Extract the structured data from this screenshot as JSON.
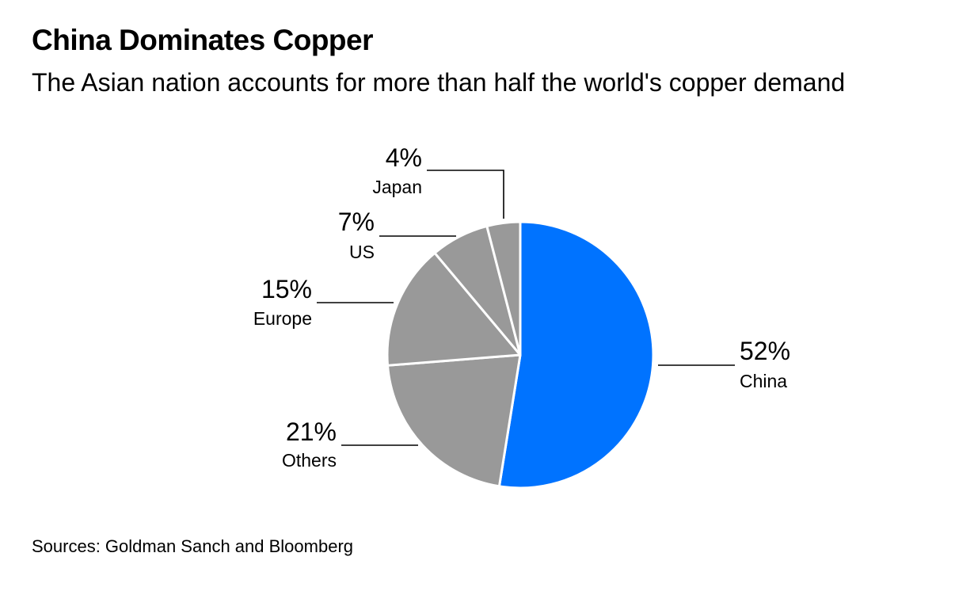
{
  "title": "China Dominates Copper",
  "subtitle": "The Asian nation accounts for more than half the world's copper demand",
  "source": "Sources: Goldman Sanch and Bloomberg",
  "colors": {
    "highlight": "#0073ff",
    "other": "#999999",
    "separator": "#ffffff",
    "leader": "#000000"
  },
  "chart_data": {
    "type": "pie",
    "title": "China Dominates Copper",
    "subtitle": "The Asian nation accounts for more than half the world's copper demand",
    "slices": [
      {
        "label": "China",
        "value": 52,
        "display": "52%",
        "color": "#0073ff"
      },
      {
        "label": "Others",
        "value": 21,
        "display": "21%",
        "color": "#999999"
      },
      {
        "label": "Europe",
        "value": 15,
        "display": "15%",
        "color": "#999999"
      },
      {
        "label": "US",
        "value": 7,
        "display": "7%",
        "color": "#999999"
      },
      {
        "label": "Japan",
        "value": 4,
        "display": "4%",
        "color": "#999999"
      }
    ],
    "start": "12 o'clock",
    "direction": "clockwise",
    "legend": "none"
  }
}
